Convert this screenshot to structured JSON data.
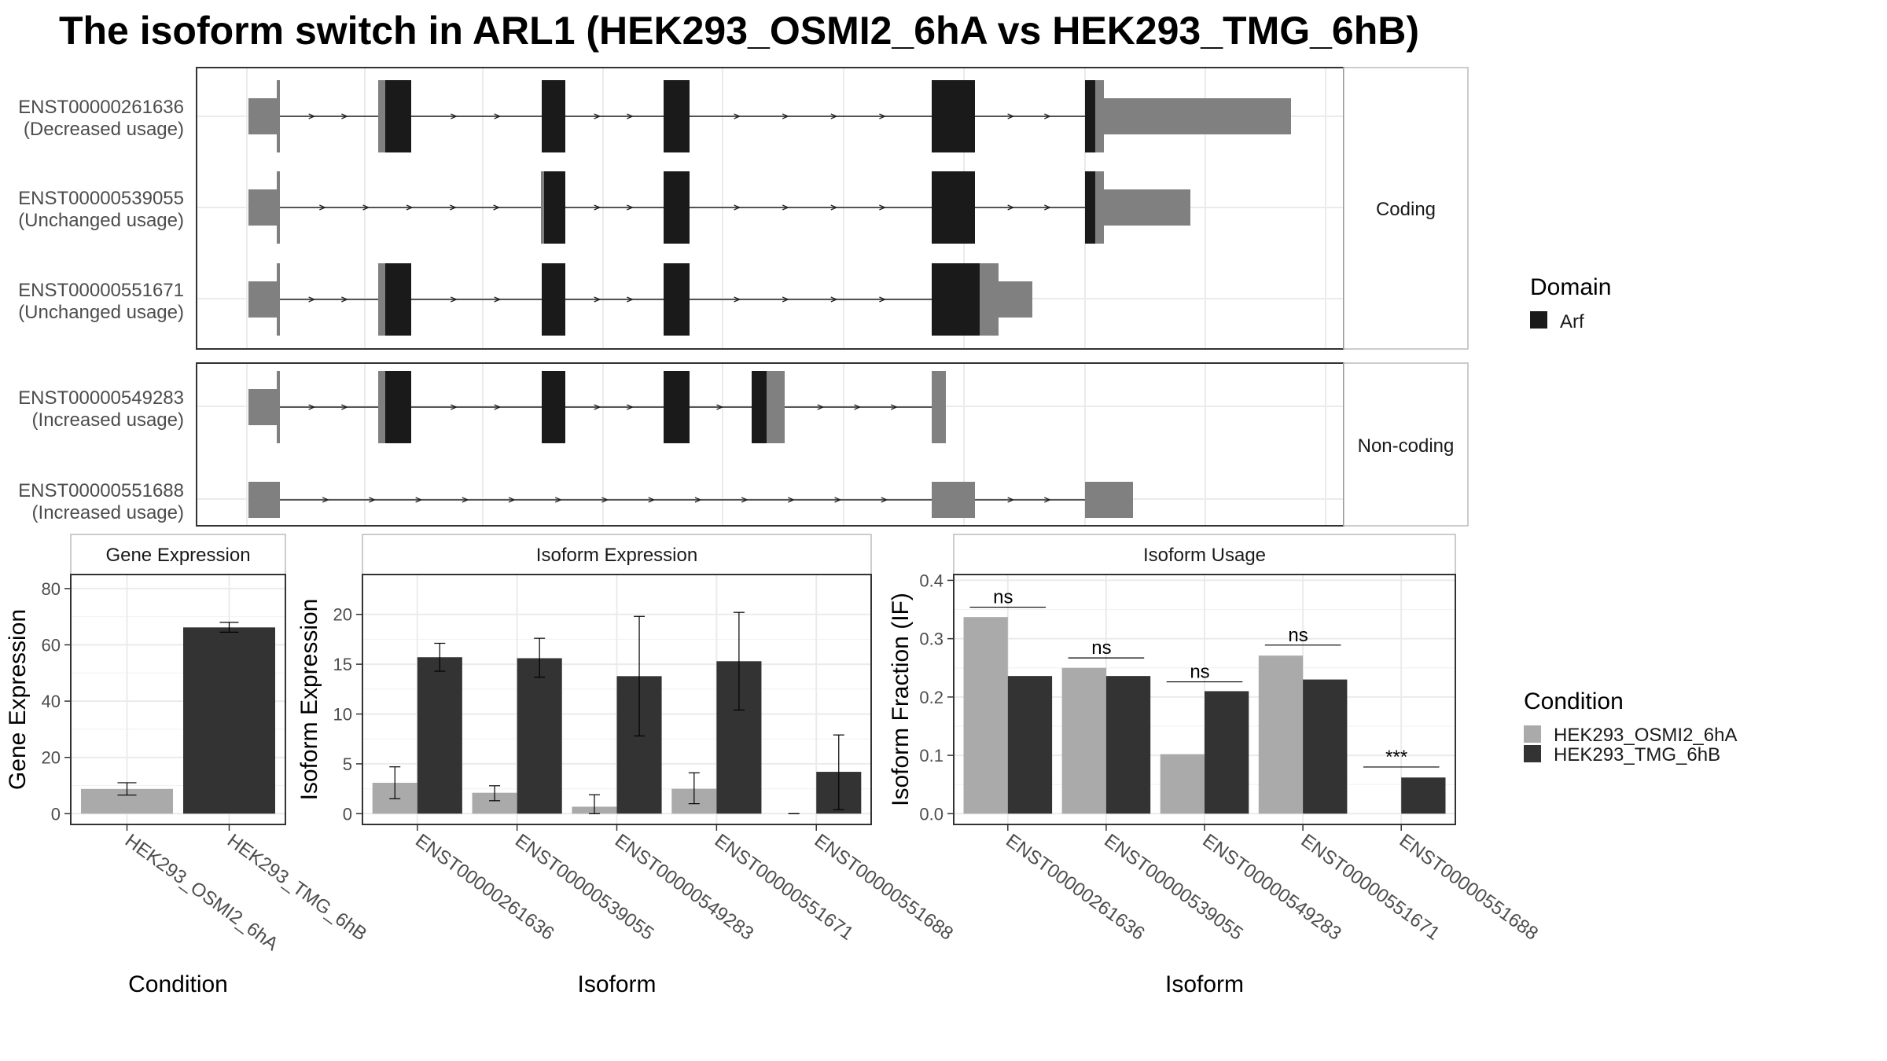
{
  "title": "The isoform switch in ARL1 (HEK293_OSMI2_6hA vs HEK293_TMG_6hB)",
  "colors": {
    "exon_noncoding": "#808080",
    "domain_arf": "#1a1a1a",
    "cond_a": "#aaaaaa",
    "cond_b": "#333333",
    "grid": "#ebebeb",
    "strip_bg": "#ffffff"
  },
  "structure": {
    "coding_label": "Coding",
    "noncoding_label": "Non-coding",
    "coding_transcripts": [
      {
        "id": "ENST00000261636",
        "usage": "(Decreased usage)"
      },
      {
        "id": "ENST00000539055",
        "usage": "(Unchanged usage)"
      },
      {
        "id": "ENST00000551671",
        "usage": "(Unchanged usage)"
      }
    ],
    "noncoding_transcripts": [
      {
        "id": "ENST00000549283",
        "usage": "(Increased usage)"
      },
      {
        "id": "ENST00000551688",
        "usage": "(Increased usage)"
      }
    ]
  },
  "legend_domain": {
    "title": "Domain",
    "items": [
      {
        "label": "Arf",
        "color": "#1a1a1a"
      }
    ]
  },
  "legend_condition": {
    "title": "Condition",
    "items": [
      {
        "label": "HEK293_OSMI2_6hA",
        "color": "#aaaaaa"
      },
      {
        "label": "HEK293_TMG_6hB",
        "color": "#333333"
      }
    ]
  },
  "chart_data": [
    {
      "type": "bar",
      "title": "Gene Expression",
      "xlabel": "Condition",
      "ylabel": "Gene Expression",
      "ylim": [
        0,
        85
      ],
      "yticks": [
        "0",
        "20",
        "40",
        "60",
        "80"
      ],
      "categories": [
        "HEK293_OSMI2_6hA",
        "HEK293_TMG_6hB"
      ],
      "values": [
        8.8,
        66.2
      ],
      "error": [
        [
          6.6,
          11.0
        ],
        [
          64.5,
          68.0
        ]
      ]
    },
    {
      "type": "bar",
      "title": "Isoform Expression",
      "xlabel": "Isoform",
      "ylabel": "Isoform Expression",
      "ylim": [
        0,
        24
      ],
      "yticks": [
        "0",
        "5",
        "10",
        "15",
        "20"
      ],
      "categories": [
        "ENST00000261636",
        "ENST00000539055",
        "ENST00000549283",
        "ENST00000551671",
        "ENST00000551688"
      ],
      "series": [
        {
          "name": "HEK293_OSMI2_6hA",
          "values": [
            3.1,
            2.1,
            0.7,
            2.5,
            0.0
          ],
          "error": [
            [
              1.5,
              4.7
            ],
            [
              1.3,
              2.8
            ],
            [
              0.0,
              1.9
            ],
            [
              1.0,
              4.1
            ],
            [
              0.0,
              0.0
            ]
          ]
        },
        {
          "name": "HEK293_TMG_6hB",
          "values": [
            15.7,
            15.6,
            13.8,
            15.3,
            4.2
          ],
          "error": [
            [
              14.3,
              17.1
            ],
            [
              13.7,
              17.6
            ],
            [
              7.8,
              19.8
            ],
            [
              10.4,
              20.2
            ],
            [
              0.4,
              7.9
            ]
          ]
        }
      ]
    },
    {
      "type": "bar",
      "title": "Isoform Usage",
      "xlabel": "Isoform",
      "ylabel": "Isoform Fraction (IF)",
      "ylim": [
        0,
        0.41
      ],
      "yticks": [
        "0.0",
        "0.1",
        "0.2",
        "0.3",
        "0.4"
      ],
      "categories": [
        "ENST00000261636",
        "ENST00000539055",
        "ENST00000549283",
        "ENST00000551671",
        "ENST00000551688"
      ],
      "series": [
        {
          "name": "HEK293_OSMI2_6hA",
          "values": [
            0.337,
            0.25,
            0.102,
            0.271,
            0.0
          ]
        },
        {
          "name": "HEK293_TMG_6hB",
          "values": [
            0.236,
            0.236,
            0.21,
            0.23,
            0.062
          ]
        }
      ],
      "significance": [
        "ns",
        "ns",
        "ns",
        "ns",
        "***"
      ],
      "sig_y": [
        0.354,
        0.267,
        0.226,
        0.289,
        0.08
      ]
    }
  ]
}
